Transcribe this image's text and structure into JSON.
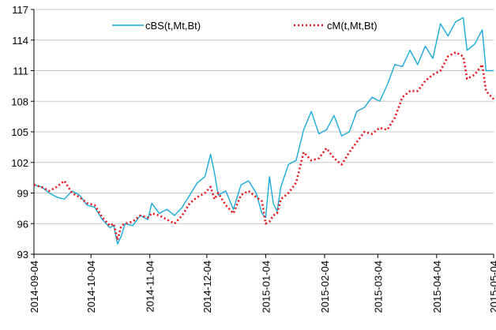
{
  "chart_data": {
    "type": "line",
    "x": [
      "2014-09-04",
      "2014-09-08",
      "2014-09-12",
      "2014-09-16",
      "2014-09-20",
      "2014-09-24",
      "2014-09-28",
      "2014-10-02",
      "2014-10-06",
      "2014-10-10",
      "2014-10-14",
      "2014-10-16",
      "2014-10-18",
      "2014-10-20",
      "2014-10-22",
      "2014-10-26",
      "2014-10-30",
      "2014-11-03",
      "2014-11-05",
      "2014-11-09",
      "2014-11-13",
      "2014-11-17",
      "2014-11-21",
      "2014-11-25",
      "2014-11-29",
      "2014-12-03",
      "2014-12-06",
      "2014-12-08",
      "2014-12-10",
      "2014-12-14",
      "2014-12-18",
      "2014-12-22",
      "2014-12-26",
      "2014-12-30",
      "2015-01-02",
      "2015-01-04",
      "2015-01-06",
      "2015-01-08",
      "2015-01-10",
      "2015-01-12",
      "2015-01-16",
      "2015-01-20",
      "2015-01-24",
      "2015-01-28",
      "2015-02-01",
      "2015-02-05",
      "2015-02-09",
      "2015-02-13",
      "2015-02-17",
      "2015-02-21",
      "2015-02-25",
      "2015-03-01",
      "2015-03-05",
      "2015-03-09",
      "2015-03-13",
      "2015-03-17",
      "2015-03-21",
      "2015-03-25",
      "2015-03-29",
      "2015-04-02",
      "2015-04-06",
      "2015-04-10",
      "2015-04-14",
      "2015-04-18",
      "2015-04-20",
      "2015-04-24",
      "2015-04-28",
      "2015-04-30",
      "2015-05-04"
    ],
    "series": [
      {
        "name": "cBS(t,Mt,Bt)",
        "color": "#1ba9dc",
        "dash": false,
        "values": [
          99.8,
          99.6,
          99.0,
          98.6,
          98.4,
          99.2,
          98.8,
          97.8,
          97.6,
          96.4,
          95.6,
          95.8,
          94.0,
          94.8,
          96.0,
          95.8,
          96.8,
          96.4,
          98.0,
          97.0,
          97.4,
          96.8,
          97.6,
          98.8,
          100.0,
          100.6,
          102.8,
          101.0,
          98.8,
          99.2,
          97.4,
          99.8,
          100.2,
          99.0,
          97.0,
          96.6,
          100.6,
          98.0,
          97.2,
          99.6,
          101.8,
          102.2,
          105.2,
          107.0,
          104.8,
          105.2,
          106.6,
          104.6,
          105.0,
          107.0,
          107.4,
          108.4,
          108.0,
          109.6,
          111.6,
          111.4,
          113.0,
          111.6,
          113.4,
          112.2,
          115.6,
          114.4,
          115.8,
          116.2,
          113.0,
          113.6,
          115.0,
          111.0,
          111.0
        ]
      },
      {
        "name": "cM(t,Mt,Bt)",
        "color": "#e8141c",
        "dash": true,
        "values": [
          99.8,
          99.6,
          99.2,
          99.6,
          100.2,
          99.0,
          98.6,
          98.0,
          97.8,
          96.6,
          95.8,
          96.0,
          94.4,
          95.8,
          96.0,
          96.2,
          96.8,
          96.6,
          97.0,
          96.8,
          96.4,
          96.0,
          96.8,
          98.0,
          98.6,
          99.0,
          99.6,
          98.4,
          99.0,
          97.8,
          97.0,
          98.8,
          99.2,
          98.6,
          98.2,
          96.0,
          96.2,
          96.8,
          97.0,
          98.4,
          99.0,
          100.0,
          103.0,
          102.2,
          102.4,
          103.4,
          102.4,
          101.8,
          103.0,
          104.0,
          105.0,
          104.8,
          105.4,
          105.2,
          106.4,
          108.4,
          109.0,
          109.0,
          110.0,
          110.6,
          111.0,
          112.4,
          112.8,
          112.4,
          110.2,
          110.6,
          111.6,
          109.0,
          108.2
        ]
      }
    ],
    "xlim": [
      "2014-09-04",
      "2015-05-04"
    ],
    "xticks": [
      "2014-09-04",
      "2014-10-04",
      "2014-11-04",
      "2014-12-04",
      "2015-01-04",
      "2015-02-04",
      "2015-03-04",
      "2015-04-04",
      "2015-05-04"
    ],
    "ylim": [
      93,
      117
    ],
    "yticks": [
      93,
      96,
      99,
      102,
      105,
      108,
      111,
      114,
      117
    ],
    "grid": true,
    "legend": "top"
  }
}
